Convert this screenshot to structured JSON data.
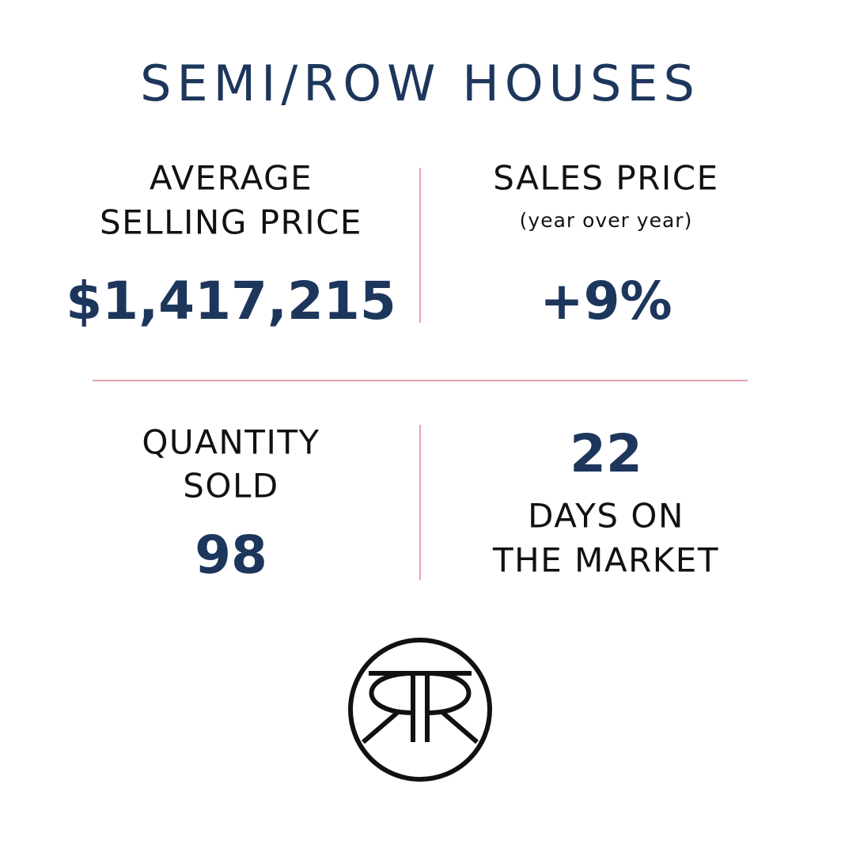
{
  "title": "SEMI/ROW HOUSES",
  "cells": [
    {
      "label": [
        "AVERAGE",
        "SELLING PRICE"
      ],
      "value": "$1,417,215"
    },
    {
      "label": [
        "SALES PRICE"
      ],
      "note": "(year over year)",
      "value": "+9%"
    },
    {
      "label": [
        "QUANTITY",
        "SOLD"
      ],
      "value": "98"
    },
    {
      "value": "22",
      "label": [
        "DAYS ON",
        "THE MARKET"
      ]
    }
  ]
}
